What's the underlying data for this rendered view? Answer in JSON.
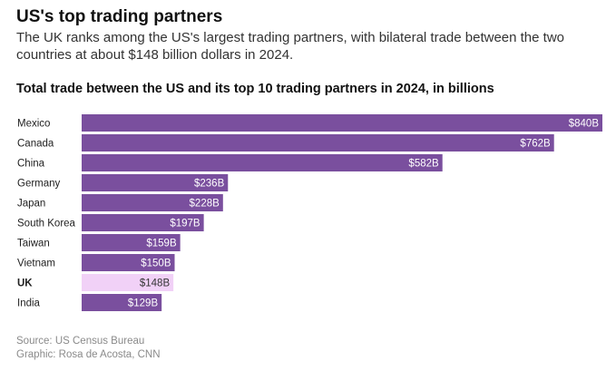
{
  "header": {
    "title": "US's top trading partners",
    "subtitle": "The UK ranks among the US's largest trading partners, with bilateral trade between the two countries at about $148 billion dollars in 2024."
  },
  "chart_data": {
    "type": "bar",
    "orientation": "horizontal",
    "title": "Total trade between the US and its top 10 trading partners in 2024, in billions",
    "categories": [
      "Mexico",
      "Canada",
      "China",
      "Germany",
      "Japan",
      "South Korea",
      "Taiwan",
      "Vietnam",
      "UK",
      "India"
    ],
    "values": [
      840,
      762,
      582,
      236,
      228,
      197,
      159,
      150,
      148,
      129
    ],
    "data_labels": [
      "$840B",
      "$762B",
      "$582B",
      "$236B",
      "$228B",
      "$197B",
      "$159B",
      "$150B",
      "$148B",
      "$129B"
    ],
    "highlight": "UK",
    "colors": {
      "bar": "#7a4f9e",
      "highlight": "#f1d1f7",
      "label_on_bar": "#ffffff",
      "label_on_highlight": "#333333"
    },
    "xlim": [
      0,
      840
    ],
    "grid": false
  },
  "footer": {
    "source": "Source: US Census Bureau",
    "credit": "Graphic: Rosa de Acosta, CNN"
  }
}
